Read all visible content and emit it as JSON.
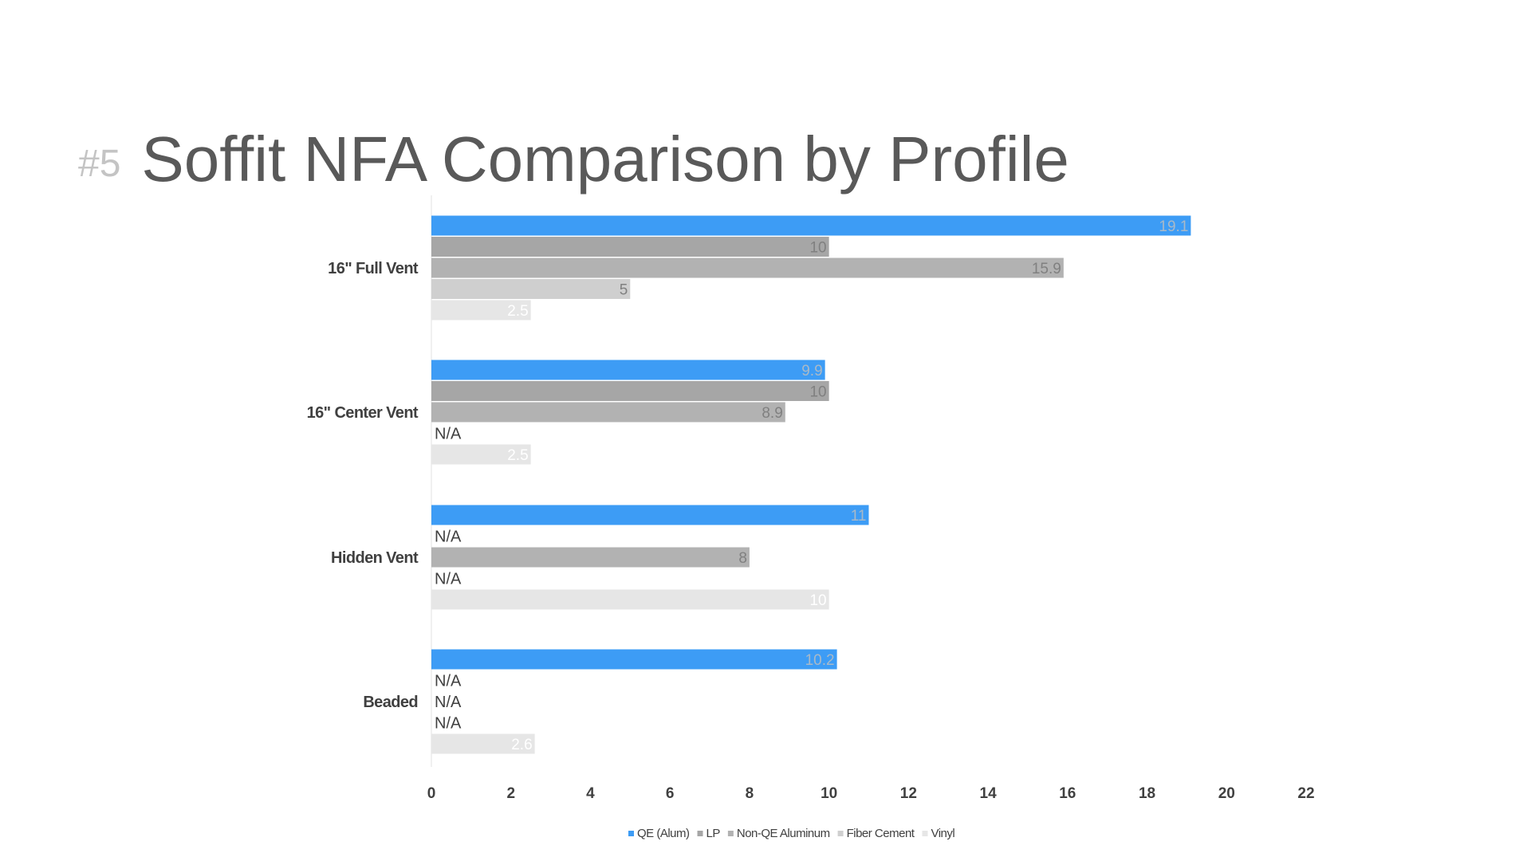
{
  "slide": {
    "number": "#5",
    "title": "Soffit NFA Comparison by Profile"
  },
  "chart_data": {
    "type": "bar",
    "orientation": "horizontal",
    "categories": [
      "16\" Full Vent",
      "16\" Center Vent",
      "Hidden Vent",
      "Beaded"
    ],
    "series": [
      {
        "name": "QE (Alum)",
        "color": "#3d9cf5",
        "label_color": "#a9b9c8",
        "values": [
          19.1,
          9.9,
          11,
          10.2
        ]
      },
      {
        "name": "LP",
        "color": "#a6a6a6",
        "label_color": "#808080",
        "values": [
          10,
          10,
          null,
          null
        ]
      },
      {
        "name": "Non-QE Aluminum",
        "color": "#b2b2b2",
        "label_color": "#808080",
        "values": [
          15.9,
          8.9,
          8,
          null
        ]
      },
      {
        "name": "Fiber Cement",
        "color": "#cfcfcf",
        "label_color": "#808080",
        "values": [
          5,
          null,
          null,
          null
        ]
      },
      {
        "name": "Vinyl",
        "color": "#e6e6e6",
        "label_color": "#ffffff",
        "values": [
          2.5,
          2.5,
          10,
          2.6
        ]
      }
    ],
    "missing_label": "N/A",
    "xlim": [
      0,
      22
    ],
    "xticks": [
      0,
      2,
      4,
      6,
      8,
      10,
      12,
      14,
      16,
      18,
      20,
      22
    ],
    "grid": false,
    "legend_position": "bottom"
  }
}
